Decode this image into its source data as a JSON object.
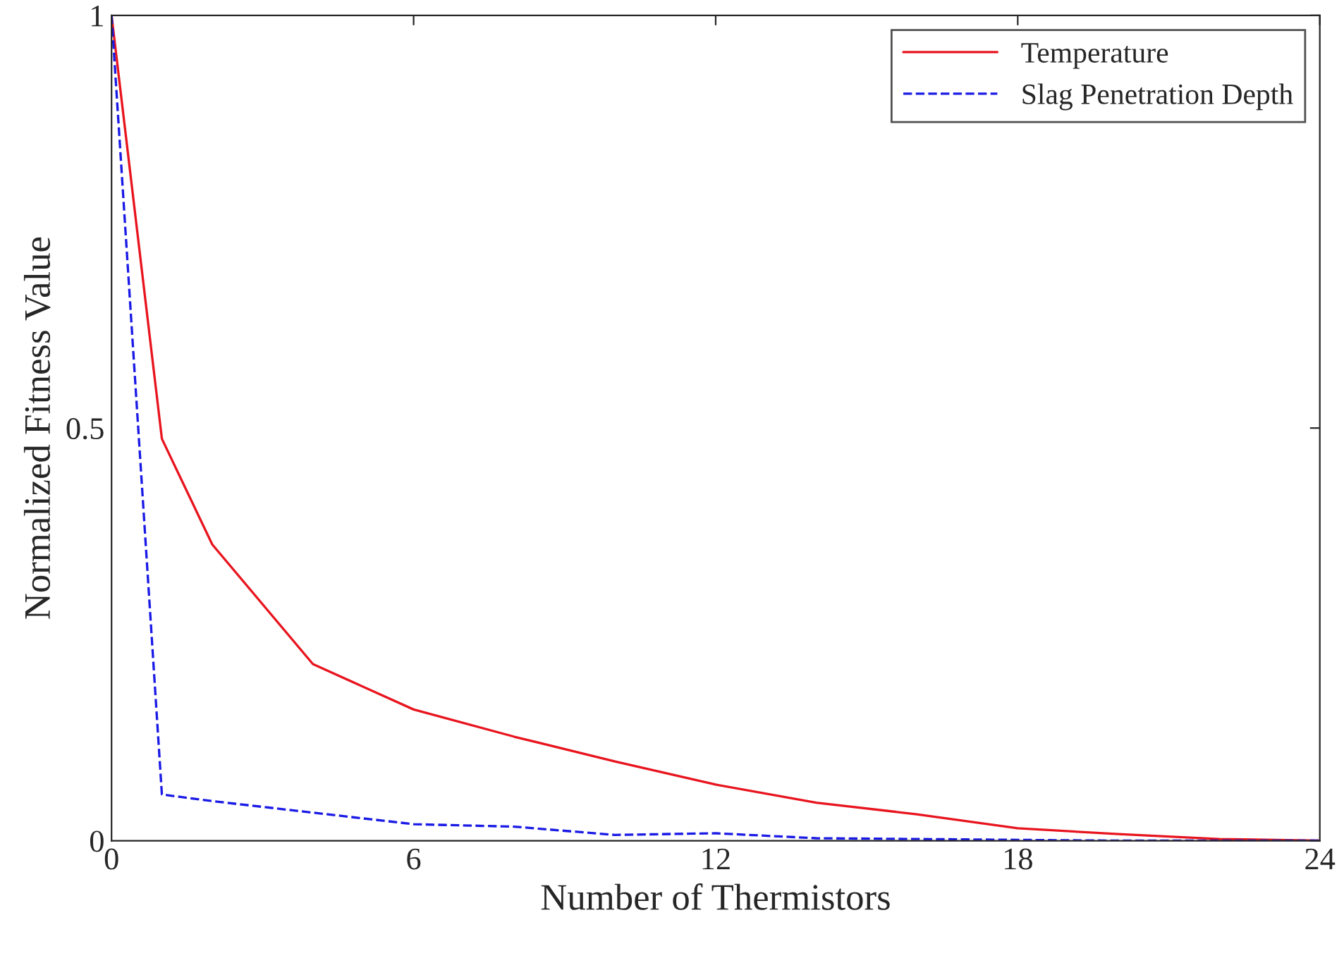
{
  "chart_data": {
    "type": "line",
    "xlabel": "Number of Thermistors",
    "ylabel": "Normalized Fitness Value",
    "xlim": [
      0,
      24
    ],
    "xticks": [
      0,
      6,
      12,
      18,
      24
    ],
    "ylim": [
      0,
      1
    ],
    "yticks": [
      0,
      0.5,
      1
    ],
    "grid": false,
    "legend": "top right",
    "series": [
      {
        "name": "Temperature",
        "color": "#e8141e",
        "line_style": "solid",
        "x": [
          0,
          1,
          2,
          4,
          6,
          8,
          10,
          12,
          14,
          16,
          18,
          20,
          22,
          24
        ],
        "values": [
          1,
          0.487,
          0.359,
          0.214,
          0.159,
          0.126,
          0.096,
          0.068,
          0.046,
          0.032,
          0.015,
          0.008,
          0.002,
          0
        ]
      },
      {
        "name": "Slag Penetration Depth",
        "color": "#1a1ae6",
        "line_style": "dashed",
        "x": [
          0,
          1,
          2,
          4,
          6,
          8,
          10,
          12,
          14,
          16,
          18,
          20,
          22,
          24
        ],
        "values": [
          1,
          0.056,
          0.048,
          0.034,
          0.02,
          0.017,
          0.007,
          0.009,
          0.003,
          0.002,
          0.001,
          0,
          0,
          0
        ]
      }
    ]
  }
}
